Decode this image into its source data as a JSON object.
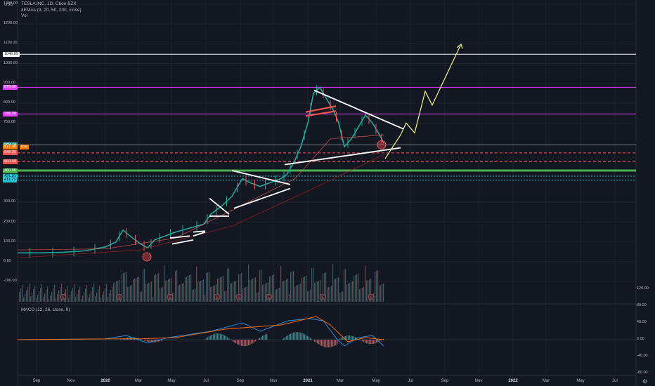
{
  "header": {
    "currency": "USD",
    "title": "TESLA INC, 1D, Cboe BZX",
    "indicator": "4EMAs (9, 20, 50, 200, close)",
    "volume": "Vol"
  },
  "macd_label": "MACD (12, 26, close, 9)",
  "left_axis": {
    "labels": [
      {
        "text": "1300.00",
        "value": 1300
      },
      {
        "text": "1200.00",
        "value": 1200
      },
      {
        "text": "1100.00",
        "value": 1100
      },
      {
        "text": "1000.00",
        "value": 1000
      },
      {
        "text": "900.00",
        "value": 900
      },
      {
        "text": "800.00",
        "value": 800
      },
      {
        "text": "700.00",
        "value": 700
      },
      {
        "text": "300.00",
        "value": 300
      },
      {
        "text": "200.00",
        "value": 200
      },
      {
        "text": "100.00",
        "value": 100
      },
      {
        "text": "0.00",
        "value": 0
      },
      {
        "text": "-100.00",
        "value": -100
      }
    ],
    "tags": [
      {
        "text": "1046.89",
        "value": 1046.89,
        "bg": "#ffffff",
        "fg": "#131722"
      },
      {
        "text": "879.99",
        "value": 879.99,
        "bg": "#e040fb",
        "fg": "#ffffff"
      },
      {
        "text": "745.38",
        "value": 745.38,
        "bg": "#e040fb",
        "fg": "#ffffff"
      },
      {
        "text": "589.74",
        "value": 589.74,
        "bg": "#26a69a",
        "fg": "#ffffff"
      },
      {
        "text": "577.96",
        "value": 577.96,
        "bg": "#f57c00",
        "fg": "#ffffff"
      },
      {
        "text": "Pre",
        "value": 577.96,
        "bg": "#f57c00",
        "fg": "#ffffff"
      },
      {
        "text": "549.25",
        "value": 549.25,
        "bg": "#ef5350",
        "fg": "#ffffff"
      },
      {
        "text": "504.53",
        "value": 504.53,
        "bg": "#ef5350",
        "fg": "#ffffff"
      },
      {
        "text": "460.00",
        "value": 460,
        "bg": "#4caf50",
        "fg": "#ffffff"
      },
      {
        "text": "431.81",
        "value": 431.81,
        "bg": "#26c6da",
        "fg": "#131722"
      },
      {
        "text": "411.71",
        "value": 411.71,
        "bg": "#26c6da",
        "fg": "#131722"
      }
    ]
  },
  "right_axis": {
    "labels": [
      {
        "text": "120.00",
        "value": 120
      },
      {
        "text": "80.00",
        "value": 80
      },
      {
        "text": "40.00",
        "value": 40
      },
      {
        "text": "0.00",
        "value": 0
      },
      {
        "text": "-40.00",
        "value": -40
      },
      {
        "text": "-80.00",
        "value": -80
      }
    ]
  },
  "x_axis": {
    "labels": [
      {
        "text": "Sep",
        "bold": false
      },
      {
        "text": "Nov",
        "bold": false
      },
      {
        "text": "2020",
        "bold": true
      },
      {
        "text": "Mar",
        "bold": false
      },
      {
        "text": "May",
        "bold": false
      },
      {
        "text": "Jul",
        "bold": false
      },
      {
        "text": "Sep",
        "bold": false
      },
      {
        "text": "Nov",
        "bold": false
      },
      {
        "text": "2021",
        "bold": true
      },
      {
        "text": "Mar",
        "bold": false
      },
      {
        "text": "May",
        "bold": false
      },
      {
        "text": "Jul",
        "bold": false
      },
      {
        "text": "Sep",
        "bold": false
      },
      {
        "text": "Nov",
        "bold": false
      },
      {
        "text": "2022",
        "bold": true
      },
      {
        "text": "Mar",
        "bold": false
      },
      {
        "text": "May",
        "bold": false
      },
      {
        "text": "Jul",
        "bold": false
      }
    ]
  },
  "levels": [
    {
      "value": 1046.89,
      "color": "#ffffff",
      "style": "solid"
    },
    {
      "value": 879.99,
      "color": "#e040fb",
      "style": "solid"
    },
    {
      "value": 745.38,
      "color": "#e040fb",
      "style": "solid"
    },
    {
      "value": 589.74,
      "color": "#787b86",
      "style": "solid"
    },
    {
      "value": 549.25,
      "color": "#ef5350",
      "style": "dashed"
    },
    {
      "value": 504.53,
      "color": "#ef5350",
      "style": "dashed"
    },
    {
      "value": 460,
      "color": "#4caf50",
      "style": "solid-thick"
    },
    {
      "value": 431.81,
      "color": "#26c6da",
      "style": "dotted"
    },
    {
      "value": 411.71,
      "color": "#26c6da",
      "style": "dotted"
    }
  ],
  "earnings_marker": "E",
  "dividend_marker": "S",
  "colors": {
    "up": "#26a69a",
    "down": "#ef5350",
    "background": "#131722"
  }
}
